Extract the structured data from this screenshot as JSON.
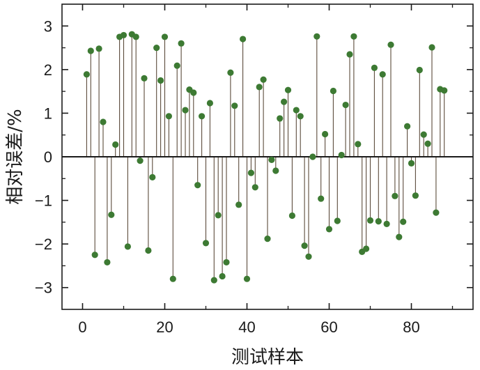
{
  "chart_data": {
    "type": "stem",
    "xlabel": "测试样本",
    "ylabel": "相对误差/%",
    "xlim": [
      -5,
      95
    ],
    "ylim": [
      -3.5,
      3.5
    ],
    "xticks": [
      0,
      20,
      40,
      60,
      80
    ],
    "yticks": [
      -3,
      -2,
      -1,
      0,
      1,
      2,
      3
    ],
    "ytick_labels": [
      "−3",
      "−2",
      "−1",
      "0",
      "1",
      "2",
      "3"
    ],
    "baseline": 0,
    "grid": false,
    "legend": "none",
    "colors": {
      "marker": "#3d7a33",
      "stem": "#5b4a3a",
      "axis": "#1a1a1a"
    },
    "x": [
      1,
      2,
      3,
      4,
      5,
      6,
      7,
      8,
      9,
      10,
      11,
      12,
      13,
      14,
      15,
      16,
      17,
      18,
      19,
      20,
      21,
      22,
      23,
      24,
      25,
      26,
      27,
      28,
      29,
      30,
      31,
      32,
      33,
      34,
      35,
      36,
      37,
      38,
      39,
      40,
      41,
      42,
      43,
      44,
      45,
      46,
      47,
      48,
      49,
      50,
      51,
      52,
      53,
      54,
      55,
      56,
      57,
      58,
      59,
      60,
      61,
      62,
      63,
      64,
      65,
      66,
      67,
      68,
      69,
      70,
      71,
      72,
      73,
      74,
      75,
      76,
      77,
      78,
      79,
      80,
      81,
      82,
      83,
      84,
      85,
      86,
      87,
      88
    ],
    "values": [
      1.89,
      2.43,
      -2.25,
      2.48,
      0.8,
      -2.42,
      -1.33,
      0.28,
      2.75,
      2.79,
      -2.06,
      2.81,
      2.75,
      -0.09,
      1.8,
      -2.15,
      -0.47,
      2.5,
      1.75,
      2.75,
      0.93,
      -2.8,
      2.09,
      2.6,
      1.07,
      1.54,
      1.47,
      -0.65,
      0.93,
      -1.98,
      1.23,
      -2.83,
      -1.34,
      -2.74,
      -2.42,
      1.93,
      1.17,
      -1.1,
      2.7,
      -2.8,
      -0.37,
      -0.7,
      1.6,
      1.77,
      -1.88,
      -0.07,
      -0.32,
      0.88,
      1.26,
      1.53,
      -1.35,
      1.07,
      0.93,
      -2.04,
      -2.29,
      0.0,
      2.76,
      -0.96,
      0.52,
      -1.66,
      1.51,
      -1.47,
      0.04,
      1.19,
      2.35,
      2.76,
      0.29,
      -2.18,
      -2.11,
      -1.46,
      2.04,
      -1.48,
      1.89,
      -1.54,
      2.57,
      -0.9,
      -1.84,
      -1.49,
      0.7,
      -0.15,
      -0.89,
      1.99,
      0.51,
      0.3,
      2.51,
      -1.28,
      1.55,
      1.52
    ]
  }
}
